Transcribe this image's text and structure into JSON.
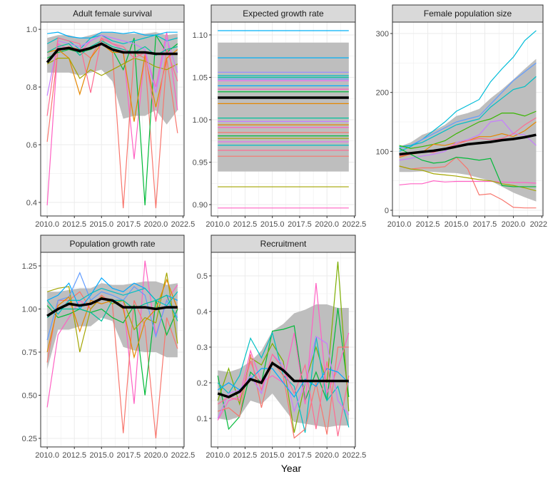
{
  "chart_data": [
    {
      "type": "line",
      "title": "Adult female survival",
      "x": [
        2010,
        2011,
        2012,
        2013,
        2014,
        2015,
        2016,
        2017,
        2018,
        2019,
        2020,
        2021,
        2022
      ],
      "xlim": [
        2009.4,
        2022.6
      ],
      "xticks": [
        "2010.0",
        "2012.5",
        "2015.0",
        "2017.5",
        "2020.0",
        "2022.5"
      ],
      "ylim": [
        0.353,
        1.025
      ],
      "yticks": [
        "0.4",
        "0.6",
        "0.8",
        "1.0"
      ],
      "ribbon": {
        "lower": [
          0.85,
          0.85,
          0.85,
          0.84,
          0.85,
          0.86,
          0.82,
          0.69,
          0.7,
          0.7,
          0.72,
          0.67,
          0.72
        ],
        "upper": [
          0.97,
          0.98,
          0.98,
          0.97,
          0.98,
          0.99,
          0.99,
          0.985,
          0.985,
          0.985,
          0.99,
          0.98,
          0.985
        ]
      },
      "mean": [
        0.885,
        0.93,
        0.935,
        0.925,
        0.935,
        0.95,
        0.93,
        0.92,
        0.92,
        0.92,
        0.915,
        0.915,
        0.915
      ],
      "series": [
        {
          "color": "#FF61C3",
          "values": [
            0.39,
            0.95,
            0.93,
            0.92,
            0.96,
            0.98,
            0.95,
            0.93,
            0.55,
            0.92,
            0.8,
            0.99,
            0.72
          ]
        },
        {
          "color": "#F8766D",
          "values": [
            0.61,
            0.93,
            0.94,
            0.93,
            0.9,
            0.97,
            0.92,
            0.38,
            0.92,
            0.9,
            0.38,
            0.9,
            0.64
          ]
        },
        {
          "color": "#00BA38",
          "values": [
            0.9,
            0.92,
            0.93,
            0.92,
            0.93,
            0.95,
            0.93,
            0.86,
            0.97,
            0.39,
            0.98,
            0.92,
            0.95
          ]
        },
        {
          "color": "#E58700",
          "values": [
            0.92,
            0.93,
            0.9,
            0.775,
            0.9,
            0.95,
            0.92,
            0.92,
            0.68,
            0.91,
            0.73,
            0.9,
            0.93
          ]
        },
        {
          "color": "#A3A500",
          "values": [
            0.88,
            0.9,
            0.9,
            0.83,
            0.86,
            0.84,
            0.86,
            0.88,
            0.9,
            0.89,
            0.87,
            0.86,
            0.88
          ]
        },
        {
          "color": "#00B0F6",
          "values": [
            0.985,
            0.99,
            0.975,
            0.97,
            0.97,
            0.99,
            0.99,
            0.985,
            0.99,
            0.98,
            0.98,
            0.99,
            0.99
          ]
        },
        {
          "color": "#00BFC4",
          "values": [
            0.95,
            0.97,
            0.96,
            0.93,
            0.97,
            0.98,
            0.96,
            0.95,
            0.96,
            0.97,
            0.98,
            0.96,
            0.97
          ]
        },
        {
          "color": "#C77CFF",
          "values": [
            0.77,
            0.96,
            0.95,
            0.94,
            0.96,
            0.98,
            0.97,
            0.96,
            0.95,
            0.93,
            0.78,
            0.97,
            0.85
          ]
        },
        {
          "color": "#00C19A",
          "values": [
            0.92,
            0.94,
            0.95,
            0.91,
            0.94,
            0.96,
            0.94,
            0.93,
            0.92,
            0.94,
            0.91,
            0.93,
            0.94
          ]
        },
        {
          "color": "#FF6C91",
          "values": [
            0.7,
            0.97,
            0.96,
            0.95,
            0.78,
            0.97,
            0.95,
            0.94,
            0.9,
            0.92,
            0.68,
            0.93,
            0.82
          ]
        }
      ]
    },
    {
      "type": "line",
      "title": "Expected growth rate",
      "x": [
        2010,
        2011,
        2012,
        2013,
        2014,
        2015,
        2016,
        2017,
        2018,
        2019,
        2020,
        2021,
        2022
      ],
      "xlim": [
        2009.4,
        2022.6
      ],
      "xticks": [
        "2010.0",
        "2012.5",
        "2015.0",
        "2017.5",
        "2020.0",
        "2022.5"
      ],
      "ylim": [
        0.8866,
        1.1151
      ],
      "yticks": [
        "0.90",
        "0.95",
        "1.00",
        "1.05",
        "1.10"
      ],
      "ribbon": {
        "lower": 0.939,
        "upper": 1.091
      },
      "mean": 1.026,
      "constant_series": [
        {
          "color": "#00B0F6",
          "value": 1.105
        },
        {
          "color": "#00B0F6",
          "value": 1.073
        },
        {
          "color": "#9590FF",
          "value": 1.056
        },
        {
          "color": "#00BFC4",
          "value": 1.052
        },
        {
          "color": "#00C19A",
          "value": 1.05
        },
        {
          "color": "#619CFF",
          "value": 1.048
        },
        {
          "color": "#E76BF3",
          "value": 1.046
        },
        {
          "color": "#00A9FF",
          "value": 1.04
        },
        {
          "color": "#FF61C3",
          "value": 1.036
        },
        {
          "color": "#00BA38",
          "value": 1.033
        },
        {
          "color": "#E58700",
          "value": 1.019
        },
        {
          "color": "#00C19A",
          "value": 1.002
        },
        {
          "color": "#C77CFF",
          "value": 0.998
        },
        {
          "color": "#E58700",
          "value": 0.994
        },
        {
          "color": "#FF61C3",
          "value": 0.991
        },
        {
          "color": "#F8766D",
          "value": 0.985
        },
        {
          "color": "#00BA38",
          "value": 0.981
        },
        {
          "color": "#A3A500",
          "value": 0.978
        },
        {
          "color": "#E76BF3",
          "value": 0.974
        },
        {
          "color": "#00BFC4",
          "value": 0.97
        },
        {
          "color": "#FF6C91",
          "value": 0.964
        },
        {
          "color": "#F8766D",
          "value": 0.957
        },
        {
          "color": "#A3A500",
          "value": 0.921
        },
        {
          "color": "#FF61C3",
          "value": 0.896
        }
      ]
    },
    {
      "type": "line",
      "title": "Female population size",
      "x": [
        2010,
        2011,
        2012,
        2013,
        2014,
        2015,
        2016,
        2017,
        2018,
        2019,
        2020,
        2021,
        2022
      ],
      "xlim": [
        2009.4,
        2022.6
      ],
      "xticks": [
        "2010.0",
        "2012.5",
        "2015.0",
        "2017.5",
        "2020.0",
        "2022.5"
      ],
      "ylim": [
        -9.7,
        319.4
      ],
      "yticks": [
        "0",
        "100",
        "200",
        "300"
      ],
      "ribbon": {
        "lower": [
          65,
          65,
          66,
          65,
          64,
          63,
          60,
          55,
          50,
          40,
          30,
          22,
          15
        ],
        "upper": [
          108,
          115,
          128,
          135,
          145,
          160,
          165,
          172,
          190,
          205,
          222,
          240,
          257
        ]
      },
      "mean": [
        95,
        97,
        99,
        101,
        104,
        108,
        112,
        114,
        116,
        119,
        121,
        124,
        128
      ],
      "series": [
        {
          "color": "#00BCD8",
          "values": [
            100,
            108,
            120,
            135,
            150,
            168,
            178,
            188,
            218,
            240,
            260,
            288,
            305
          ]
        },
        {
          "color": "#619CFF",
          "values": [
            105,
            110,
            120,
            130,
            140,
            150,
            155,
            160,
            180,
            200,
            220,
            235,
            250
          ]
        },
        {
          "color": "#00BFC4",
          "values": [
            108,
            110,
            115,
            125,
            135,
            145,
            150,
            155,
            175,
            190,
            205,
            210,
            227
          ]
        },
        {
          "color": "#39B600",
          "values": [
            110,
            105,
            108,
            112,
            118,
            130,
            140,
            150,
            155,
            165,
            165,
            160,
            168
          ]
        },
        {
          "color": "#FF61C3",
          "values": [
            43,
            45,
            45,
            50,
            48,
            49,
            49,
            49,
            49,
            48,
            47,
            47,
            46
          ]
        },
        {
          "color": "#F8766D",
          "values": [
            75,
            70,
            72,
            72,
            74,
            90,
            70,
            26,
            28,
            18,
            5,
            4,
            4
          ]
        },
        {
          "color": "#A3A500",
          "values": [
            75,
            70,
            68,
            62,
            60,
            58,
            55,
            52,
            50,
            45,
            42,
            38,
            33
          ]
        },
        {
          "color": "#E58700",
          "values": [
            90,
            95,
            98,
            112,
            110,
            115,
            118,
            125,
            125,
            130,
            125,
            135,
            150
          ]
        },
        {
          "color": "#C77CFF",
          "values": [
            85,
            88,
            92,
            95,
            100,
            115,
            120,
            128,
            150,
            153,
            130,
            128,
            110
          ]
        },
        {
          "color": "#FF6C91",
          "values": [
            92,
            95,
            100,
            98,
            105,
            112,
            118,
            122,
            120,
            122,
            130,
            145,
            157
          ]
        },
        {
          "color": "#00BA38",
          "values": [
            105,
            95,
            85,
            80,
            82,
            90,
            88,
            85,
            88,
            42,
            40,
            40,
            40
          ]
        }
      ]
    },
    {
      "type": "line",
      "title": "Population growth rate",
      "x": [
        2010,
        2011,
        2012,
        2013,
        2014,
        2015,
        2016,
        2017,
        2018,
        2019,
        2020,
        2021,
        2022
      ],
      "xlim": [
        2009.4,
        2022.6
      ],
      "xticks": [
        "2010.0",
        "2012.5",
        "2015.0",
        "2017.5",
        "2020.0",
        "2022.5"
      ],
      "ylim": [
        0.2004,
        1.3285
      ],
      "yticks": [
        "0.25",
        "0.50",
        "0.75",
        "1.00",
        "1.25"
      ],
      "ribbon": {
        "lower": [
          0.65,
          0.88,
          0.88,
          0.9,
          0.9,
          0.95,
          0.93,
          0.78,
          0.76,
          0.75,
          0.75,
          0.72,
          0.72
        ],
        "upper": [
          1.1,
          1.1,
          1.11,
          1.12,
          1.12,
          1.15,
          1.14,
          1.14,
          1.15,
          1.16,
          1.16,
          1.14,
          1.15
        ]
      },
      "mean": [
        0.96,
        1.0,
        1.03,
        1.02,
        1.03,
        1.06,
        1.05,
        1.01,
        1.01,
        1.01,
        1.0,
        1.01,
        1.01
      ],
      "series": [
        {
          "color": "#FF61C3",
          "values": [
            0.43,
            0.85,
            0.95,
            1.05,
            1.0,
            1.07,
            1.05,
            1.05,
            0.45,
            1.28,
            0.85,
            1.05,
            1.14
          ]
        },
        {
          "color": "#F8766D",
          "values": [
            0.69,
            1.05,
            1.05,
            1.1,
            1.0,
            1.08,
            1.03,
            0.28,
            1.05,
            0.9,
            0.25,
            0.95,
            0.77
          ]
        },
        {
          "color": "#00BA38",
          "values": [
            1.02,
            0.95,
            0.97,
            1.0,
            0.98,
            1.0,
            0.95,
            0.92,
            1.02,
            0.5,
            1.05,
            0.85,
            1.0
          ]
        },
        {
          "color": "#A3A500",
          "values": [
            1.1,
            1.12,
            1.13,
            0.75,
            1.0,
            1.07,
            1.03,
            1.05,
            0.88,
            0.95,
            0.92,
            1.21,
            0.8
          ]
        },
        {
          "color": "#00A9FF",
          "values": [
            1.05,
            1.08,
            1.15,
            1.0,
            1.08,
            1.18,
            1.12,
            1.1,
            1.15,
            1.12,
            1.05,
            1.08,
            1.05
          ]
        },
        {
          "color": "#619CFF",
          "values": [
            0.82,
            1.05,
            1.07,
            1.21,
            1.05,
            1.1,
            1.08,
            1.05,
            1.13,
            1.08,
            0.84,
            1.05,
            0.95
          ]
        },
        {
          "color": "#E58700",
          "values": [
            0.75,
            1.02,
            1.07,
            0.87,
            1.05,
            1.03,
            1.05,
            1.0,
            0.72,
            0.93,
            1.0,
            1.17,
            1.0
          ]
        },
        {
          "color": "#00BFC4",
          "values": [
            1.05,
            0.97,
            1.05,
            1.05,
            1.09,
            1.12,
            1.1,
            1.08,
            1.1,
            1.12,
            1.05,
            1.02,
            1.1
          ]
        },
        {
          "color": "#00C19A",
          "values": [
            0.95,
            1.0,
            1.0,
            1.0,
            0.98,
            0.93,
            1.05,
            1.05,
            1.0,
            1.03,
            1.05,
            1.08,
            0.93
          ]
        }
      ]
    },
    {
      "type": "line",
      "title": "Recruitment",
      "xlabel": "Year",
      "x": [
        2010,
        2011,
        2012,
        2013,
        2014,
        2015,
        2016,
        2017,
        2018,
        2019,
        2020,
        2021,
        2022
      ],
      "xlim": [
        2009.4,
        2022.6
      ],
      "xticks": [
        "2010.0",
        "2012.5",
        "2015.0",
        "2017.5",
        "2020.0",
        "2022.5"
      ],
      "ylim": [
        0.02,
        0.566
      ],
      "yticks": [
        "0.1",
        "0.2",
        "0.3",
        "0.4",
        "0.5"
      ],
      "ribbon": {
        "lower": [
          0.1,
          0.095,
          0.105,
          0.15,
          0.14,
          0.17,
          0.13,
          0.09,
          0.085,
          0.08,
          0.075,
          0.08,
          0.08
        ],
        "upper": [
          0.235,
          0.23,
          0.24,
          0.26,
          0.29,
          0.345,
          0.365,
          0.395,
          0.405,
          0.42,
          0.42,
          0.41,
          0.41
        ]
      },
      "mean": [
        0.17,
        0.16,
        0.175,
        0.21,
        0.2,
        0.255,
        0.235,
        0.205,
        0.205,
        0.205,
        0.205,
        0.205,
        0.205
      ],
      "series": [
        {
          "color": "#00BA38",
          "values": [
            0.22,
            0.07,
            0.105,
            0.23,
            0.2,
            0.345,
            0.35,
            0.36,
            0.15,
            0.23,
            0.15,
            0.41,
            0.16
          ]
        },
        {
          "color": "#7CAE00",
          "values": [
            0.15,
            0.24,
            0.14,
            0.27,
            0.25,
            0.31,
            0.26,
            0.06,
            0.2,
            0.3,
            0.2,
            0.54,
            0.12
          ]
        },
        {
          "color": "#FF61C3",
          "values": [
            0.095,
            0.15,
            0.16,
            0.29,
            0.2,
            0.22,
            0.2,
            0.34,
            0.14,
            0.48,
            0.17,
            0.24,
            0.34
          ]
        },
        {
          "color": "#00BFC4",
          "values": [
            0.2,
            0.17,
            0.22,
            0.325,
            0.27,
            0.34,
            0.22,
            0.19,
            0.06,
            0.33,
            0.15,
            0.19,
            0.075
          ]
        },
        {
          "color": "#F8766D",
          "values": [
            0.12,
            0.13,
            0.105,
            0.28,
            0.13,
            0.26,
            0.22,
            0.045,
            0.07,
            0.2,
            0.055,
            0.3,
            0.3
          ]
        },
        {
          "color": "#C77CFF",
          "values": [
            0.1,
            0.17,
            0.18,
            0.22,
            0.17,
            0.28,
            0.25,
            0.12,
            0.2,
            0.33,
            0.31,
            0.15,
            0.11
          ]
        },
        {
          "color": "#00A9FF",
          "values": [
            0.18,
            0.2,
            0.18,
            0.21,
            0.24,
            0.24,
            0.2,
            0.16,
            0.21,
            0.19,
            0.24,
            0.23,
            0.2
          ]
        },
        {
          "color": "#FF6C91",
          "values": [
            0.14,
            0.16,
            0.15,
            0.26,
            0.18,
            0.28,
            0.24,
            0.17,
            0.25,
            0.07,
            0.26,
            0.05,
            0.22
          ]
        }
      ]
    }
  ],
  "colors": {
    "ribbon": "#BEBEBE",
    "mean": "#000000",
    "strip": "#D9D9D9",
    "border": "#333333",
    "grid": "#EBEBEB"
  }
}
